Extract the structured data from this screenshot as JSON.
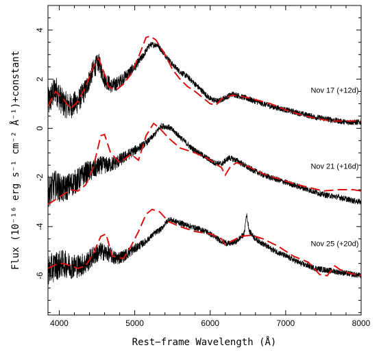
{
  "chart_data": {
    "type": "line",
    "xlabel": "Rest−frame Wavelength (Å)",
    "ylabel": "Flux (10⁻¹⁶ erg s⁻¹ cm⁻² Å⁻¹)+constant",
    "xlim": [
      3850,
      8000
    ],
    "ylim": [
      -7.6,
      5.0
    ],
    "xticks": [
      "4000",
      "5000",
      "6000",
      "7000",
      "8000"
    ],
    "yticks": [
      "4",
      "2",
      "0",
      "-2",
      "-4",
      "-6"
    ],
    "ytick_values": [
      4,
      2,
      0,
      -2,
      -4,
      -6
    ],
    "xtick_values": [
      4000,
      5000,
      6000,
      7000,
      8000
    ],
    "grid": false,
    "colors": {
      "observed": "#000000",
      "model": "#dd1111"
    },
    "spectra": [
      {
        "label": "Nov 17 (+12d)",
        "label_pos": [
          7650,
          1.45
        ],
        "observed": [
          [
            3850,
            1.0
          ],
          [
            3950,
            1.6
          ],
          [
            4050,
            1.0
          ],
          [
            4150,
            0.9
          ],
          [
            4250,
            1.1
          ],
          [
            4350,
            1.6
          ],
          [
            4450,
            2.4
          ],
          [
            4520,
            2.7
          ],
          [
            4600,
            2.0
          ],
          [
            4700,
            1.7
          ],
          [
            4800,
            1.9
          ],
          [
            4900,
            2.2
          ],
          [
            5000,
            2.5
          ],
          [
            5100,
            2.9
          ],
          [
            5200,
            3.4
          ],
          [
            5300,
            3.4
          ],
          [
            5400,
            3.0
          ],
          [
            5500,
            2.6
          ],
          [
            5600,
            2.3
          ],
          [
            5700,
            2.1
          ],
          [
            5800,
            1.8
          ],
          [
            5900,
            1.5
          ],
          [
            6000,
            1.2
          ],
          [
            6100,
            1.1
          ],
          [
            6200,
            1.25
          ],
          [
            6300,
            1.4
          ],
          [
            6400,
            1.3
          ],
          [
            6600,
            1.1
          ],
          [
            6800,
            0.9
          ],
          [
            7000,
            0.75
          ],
          [
            7200,
            0.6
          ],
          [
            7400,
            0.45
          ],
          [
            7600,
            0.35
          ],
          [
            7800,
            0.25
          ],
          [
            8000,
            0.25
          ]
        ],
        "model": [
          [
            3850,
            0.9
          ],
          [
            3950,
            1.5
          ],
          [
            4050,
            1.2
          ],
          [
            4150,
            0.8
          ],
          [
            4250,
            1.1
          ],
          [
            4350,
            1.7
          ],
          [
            4450,
            2.5
          ],
          [
            4520,
            2.85
          ],
          [
            4600,
            2.2
          ],
          [
            4650,
            1.7
          ],
          [
            4750,
            1.55
          ],
          [
            4850,
            1.8
          ],
          [
            4950,
            2.2
          ],
          [
            5050,
            2.9
          ],
          [
            5150,
            3.7
          ],
          [
            5200,
            3.75
          ],
          [
            5280,
            3.6
          ],
          [
            5400,
            3.0
          ],
          [
            5500,
            2.4
          ],
          [
            5600,
            2.0
          ],
          [
            5700,
            1.7
          ],
          [
            5800,
            1.5
          ],
          [
            5900,
            1.25
          ],
          [
            6000,
            1.0
          ],
          [
            6080,
            0.95
          ],
          [
            6150,
            1.2
          ],
          [
            6300,
            1.35
          ],
          [
            6500,
            1.25
          ],
          [
            6800,
            1.0
          ],
          [
            7000,
            0.75
          ],
          [
            7200,
            0.55
          ],
          [
            7400,
            0.4
          ],
          [
            7600,
            0.3
          ],
          [
            7800,
            0.3
          ],
          [
            8000,
            0.3
          ]
        ]
      },
      {
        "label": "Nov 21 (+16d)",
        "label_pos": [
          7650,
          -1.65
        ],
        "observed": [
          [
            3850,
            -2.6
          ],
          [
            3950,
            -2.3
          ],
          [
            4050,
            -2.5
          ],
          [
            4150,
            -2.3
          ],
          [
            4250,
            -2.1
          ],
          [
            4350,
            -1.8
          ],
          [
            4450,
            -1.7
          ],
          [
            4550,
            -1.5
          ],
          [
            4650,
            -1.5
          ],
          [
            4750,
            -1.4
          ],
          [
            4850,
            -1.2
          ],
          [
            4950,
            -1.0
          ],
          [
            5050,
            -0.8
          ],
          [
            5150,
            -0.6
          ],
          [
            5250,
            -0.3
          ],
          [
            5350,
            0.1
          ],
          [
            5450,
            0.05
          ],
          [
            5550,
            -0.2
          ],
          [
            5650,
            -0.5
          ],
          [
            5750,
            -0.8
          ],
          [
            5850,
            -1.0
          ],
          [
            5950,
            -1.2
          ],
          [
            6050,
            -1.4
          ],
          [
            6150,
            -1.45
          ],
          [
            6250,
            -1.2
          ],
          [
            6350,
            -1.3
          ],
          [
            6500,
            -1.6
          ],
          [
            6700,
            -1.9
          ],
          [
            6900,
            -2.1
          ],
          [
            7100,
            -2.3
          ],
          [
            7300,
            -2.5
          ],
          [
            7500,
            -2.7
          ],
          [
            7700,
            -2.8
          ],
          [
            7900,
            -2.95
          ],
          [
            8000,
            -3.0
          ]
        ],
        "model": [
          [
            3850,
            -3.1
          ],
          [
            3950,
            -2.9
          ],
          [
            4050,
            -2.7
          ],
          [
            4150,
            -2.5
          ],
          [
            4250,
            -2.55
          ],
          [
            4350,
            -2.3
          ],
          [
            4450,
            -1.6
          ],
          [
            4550,
            -0.3
          ],
          [
            4600,
            -0.25
          ],
          [
            4680,
            -1.0
          ],
          [
            4800,
            -1.4
          ],
          [
            4950,
            -1.05
          ],
          [
            5050,
            -1.3
          ],
          [
            5150,
            -0.3
          ],
          [
            5250,
            0.2
          ],
          [
            5330,
            0.0
          ],
          [
            5450,
            -0.4
          ],
          [
            5600,
            -0.8
          ],
          [
            5800,
            -1.0
          ],
          [
            5950,
            -1.2
          ],
          [
            6050,
            -1.4
          ],
          [
            6150,
            -1.6
          ],
          [
            6200,
            -1.9
          ],
          [
            6270,
            -1.55
          ],
          [
            6350,
            -1.4
          ],
          [
            6500,
            -1.55
          ],
          [
            6700,
            -1.85
          ],
          [
            6900,
            -2.05
          ],
          [
            7100,
            -2.25
          ],
          [
            7300,
            -2.4
          ],
          [
            7500,
            -2.55
          ],
          [
            7700,
            -2.5
          ],
          [
            7900,
            -2.5
          ],
          [
            8000,
            -2.55
          ]
        ]
      },
      {
        "label": "Nov 25 (+20d)",
        "label_pos": [
          7650,
          -4.8
        ],
        "observed": [
          [
            3850,
            -5.8
          ],
          [
            3950,
            -5.6
          ],
          [
            4050,
            -5.5
          ],
          [
            4150,
            -5.6
          ],
          [
            4250,
            -5.6
          ],
          [
            4350,
            -5.5
          ],
          [
            4450,
            -5.2
          ],
          [
            4550,
            -5.0
          ],
          [
            4650,
            -5.1
          ],
          [
            4750,
            -5.3
          ],
          [
            4850,
            -5.2
          ],
          [
            4950,
            -5.0
          ],
          [
            5050,
            -4.8
          ],
          [
            5150,
            -4.6
          ],
          [
            5250,
            -4.3
          ],
          [
            5350,
            -4.1
          ],
          [
            5450,
            -3.7
          ],
          [
            5550,
            -3.8
          ],
          [
            5650,
            -3.9
          ],
          [
            5750,
            -4.0
          ],
          [
            5850,
            -4.1
          ],
          [
            5950,
            -4.2
          ],
          [
            6050,
            -4.4
          ],
          [
            6150,
            -4.6
          ],
          [
            6250,
            -4.7
          ],
          [
            6350,
            -4.6
          ],
          [
            6450,
            -4.3
          ],
          [
            6480,
            -3.5
          ],
          [
            6520,
            -4.2
          ],
          [
            6600,
            -4.5
          ],
          [
            6800,
            -4.9
          ],
          [
            7000,
            -5.2
          ],
          [
            7200,
            -5.5
          ],
          [
            7400,
            -5.7
          ],
          [
            7600,
            -5.8
          ],
          [
            7800,
            -5.9
          ],
          [
            8000,
            -6.0
          ]
        ],
        "model": [
          [
            3850,
            -5.7
          ],
          [
            3950,
            -5.55
          ],
          [
            4050,
            -5.5
          ],
          [
            4150,
            -5.6
          ],
          [
            4250,
            -5.7
          ],
          [
            4350,
            -5.6
          ],
          [
            4450,
            -5.1
          ],
          [
            4550,
            -4.4
          ],
          [
            4620,
            -4.3
          ],
          [
            4700,
            -5.2
          ],
          [
            4850,
            -5.3
          ],
          [
            4950,
            -4.8
          ],
          [
            5050,
            -4.2
          ],
          [
            5150,
            -3.5
          ],
          [
            5230,
            -3.3
          ],
          [
            5330,
            -3.4
          ],
          [
            5450,
            -3.8
          ],
          [
            5600,
            -4.0
          ],
          [
            5800,
            -4.2
          ],
          [
            6000,
            -4.3
          ],
          [
            6150,
            -4.5
          ],
          [
            6200,
            -4.75
          ],
          [
            6280,
            -4.6
          ],
          [
            6400,
            -4.4
          ],
          [
            6550,
            -4.35
          ],
          [
            6700,
            -4.5
          ],
          [
            6900,
            -4.8
          ],
          [
            7100,
            -5.2
          ],
          [
            7300,
            -5.45
          ],
          [
            7450,
            -5.95
          ],
          [
            7550,
            -6.0
          ],
          [
            7650,
            -5.6
          ],
          [
            7720,
            -5.75
          ],
          [
            7850,
            -5.9
          ],
          [
            8000,
            -6.0
          ]
        ]
      }
    ]
  }
}
